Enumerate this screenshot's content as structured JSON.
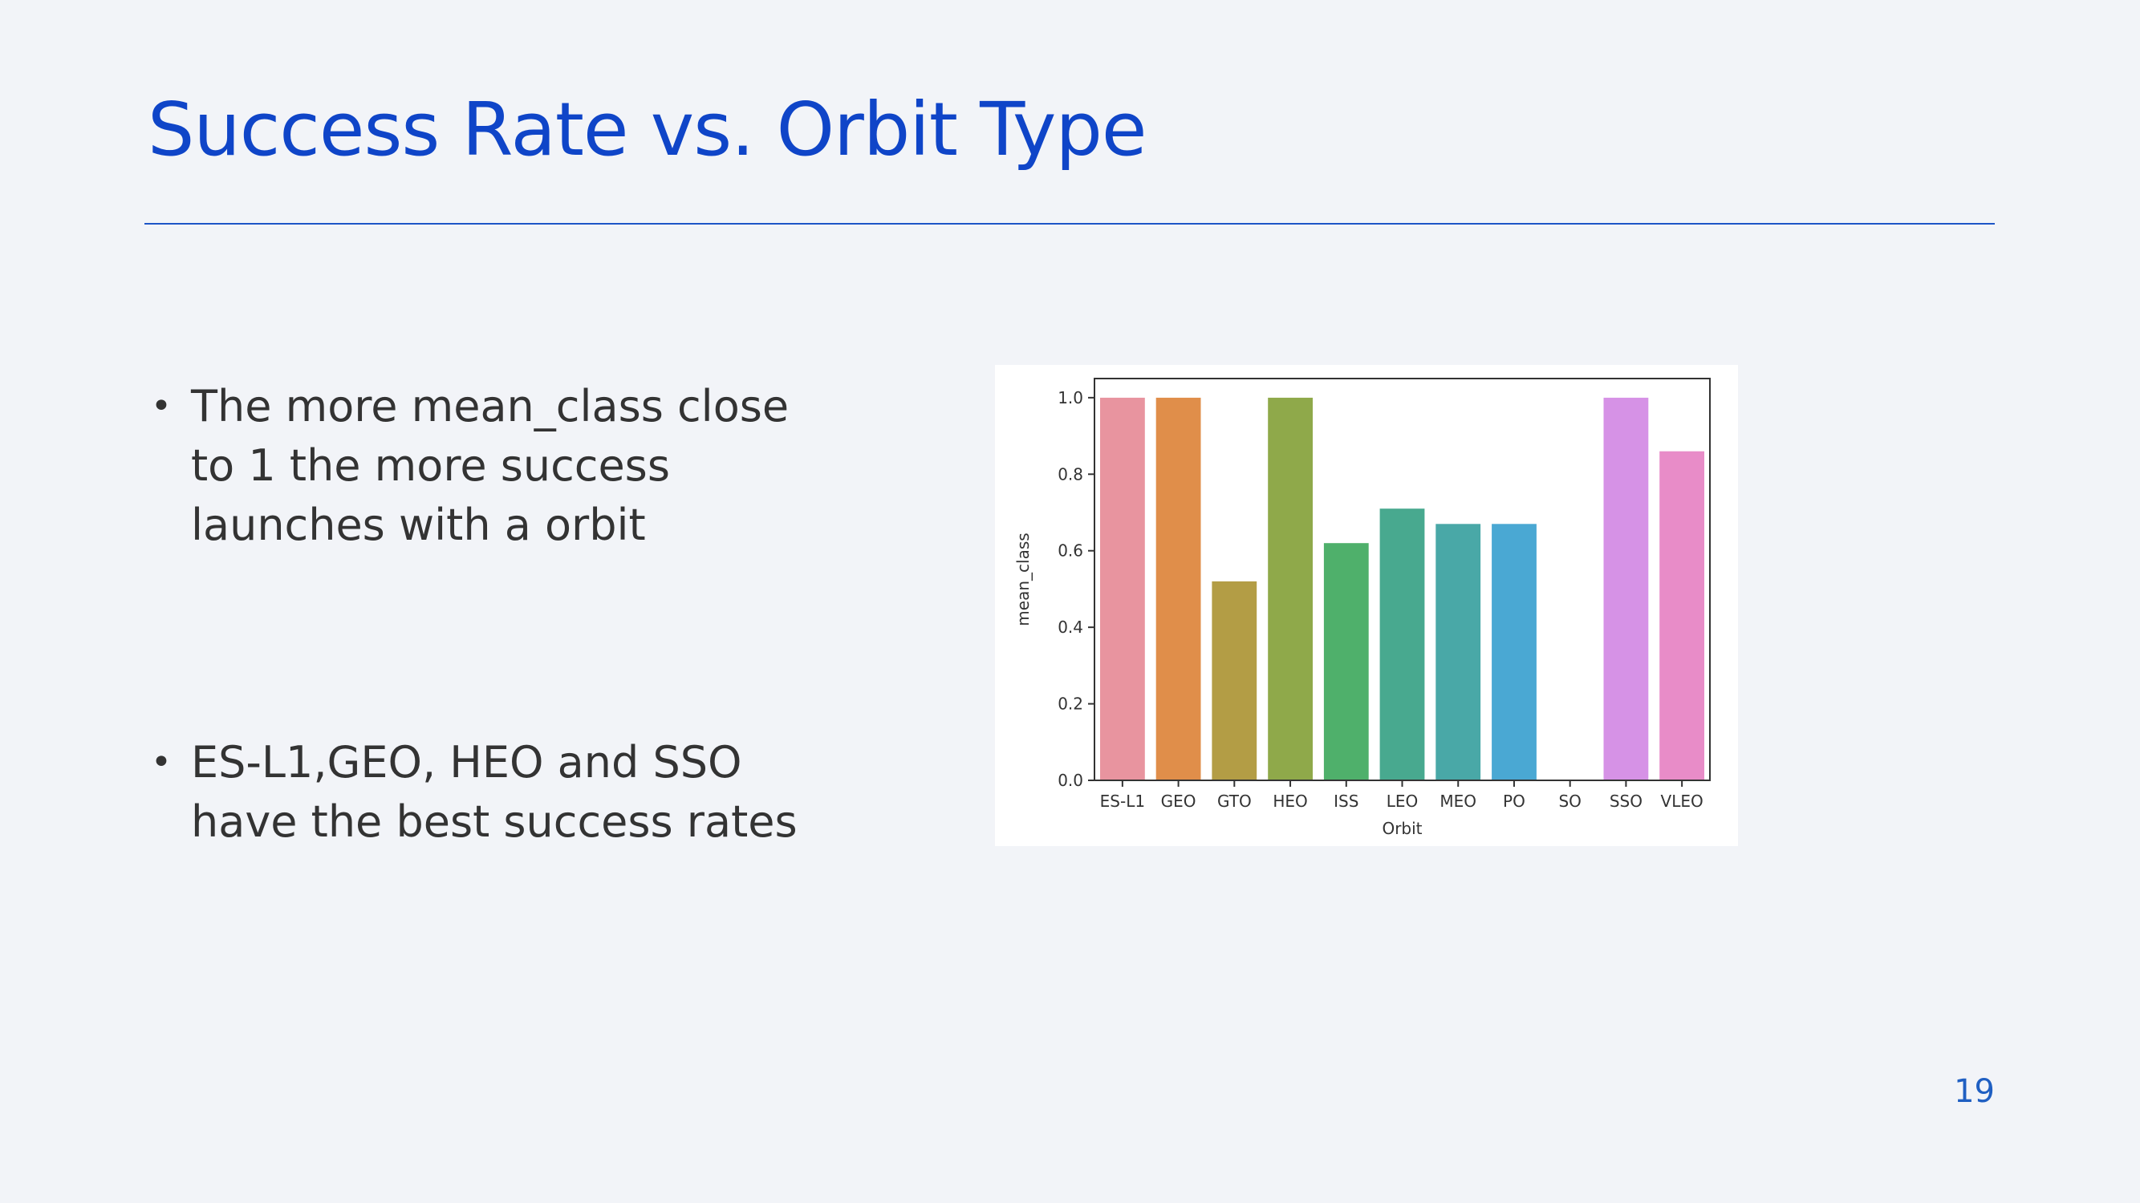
{
  "slide": {
    "title": "Success Rate vs. Orbit Type",
    "page_number": "19",
    "accent_color": "#0f45c8"
  },
  "bullets": [
    {
      "text": "The more mean_class close to 1 the more success launches with a orbit"
    },
    {
      "text": "ES-L1,GEO, HEO and SSO have the best success rates"
    }
  ],
  "chart_data": {
    "type": "bar",
    "categories": [
      "ES-L1",
      "GEO",
      "GTO",
      "HEO",
      "ISS",
      "LEO",
      "MEO",
      "PO",
      "SO",
      "SSO",
      "VLEO"
    ],
    "values": [
      1.0,
      1.0,
      0.52,
      1.0,
      0.62,
      0.71,
      0.67,
      0.67,
      0.0,
      1.0,
      0.86
    ],
    "colors": [
      "#e8949f",
      "#e08e4a",
      "#b39d45",
      "#8fa94a",
      "#4fb06b",
      "#48a98f",
      "#49a8a7",
      "#4aa8d3",
      "#a991e6",
      "#d692e6",
      "#e88cc8"
    ],
    "title": "",
    "xlabel": "Orbit",
    "ylabel": "mean_class",
    "ylim": [
      0,
      1.05
    ],
    "yticks": [
      "0.0",
      "0.2",
      "0.4",
      "0.6",
      "0.8",
      "1.0"
    ],
    "grid": false,
    "legend": "none"
  }
}
